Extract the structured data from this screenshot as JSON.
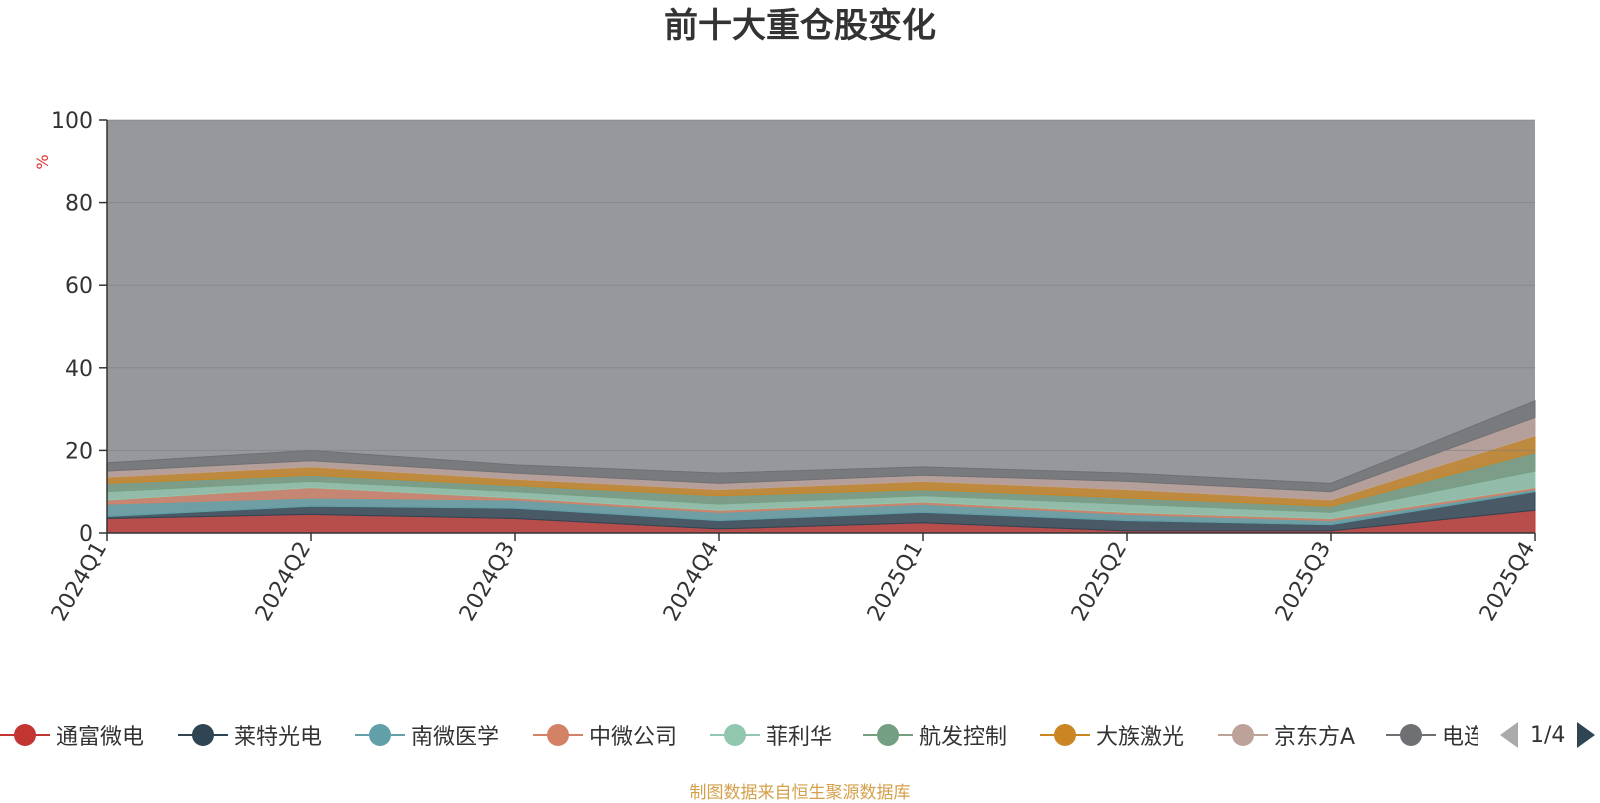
{
  "chart_data": {
    "type": "area",
    "title": "前十大重仓股变化",
    "ylabel": "%",
    "ylim": [
      0,
      100
    ],
    "y_ticks": [
      "0",
      "20",
      "40",
      "60",
      "80",
      "100"
    ],
    "categories": [
      "2024Q1",
      "2024Q2",
      "2024Q3",
      "2024Q4",
      "2025Q1",
      "2025Q2",
      "2025Q3",
      "2025Q4"
    ],
    "stacked": true,
    "grid": true,
    "series": [
      {
        "name": "通富微电",
        "color": "#c23531",
        "values": [
          3.5,
          4.5,
          3.5,
          1.0,
          2.5,
          0.5,
          0.5,
          5.5
        ]
      },
      {
        "name": "莱特光电",
        "color": "#2f4554",
        "values": [
          0.5,
          2.0,
          2.5,
          2.0,
          2.5,
          2.5,
          1.5,
          4.5
        ]
      },
      {
        "name": "南微医学",
        "color": "#61a0a8",
        "values": [
          3.0,
          2.0,
          2.0,
          2.0,
          2.0,
          1.5,
          1.0,
          0.5
        ]
      },
      {
        "name": "中微公司",
        "color": "#d48265",
        "values": [
          1.0,
          2.5,
          0.5,
          0.5,
          0.5,
          0.5,
          0.5,
          0.5
        ]
      },
      {
        "name": "菲利华",
        "color": "#91c7ae",
        "values": [
          2.0,
          1.5,
          1.5,
          1.5,
          1.5,
          2.0,
          1.5,
          4.0
        ]
      },
      {
        "name": "航发控制",
        "color": "#749f83",
        "values": [
          2.0,
          1.5,
          1.5,
          2.0,
          1.5,
          1.5,
          1.5,
          4.5
        ]
      },
      {
        "name": "大族激光",
        "color": "#ca8622",
        "values": [
          1.5,
          2.0,
          1.5,
          1.5,
          2.0,
          2.0,
          1.5,
          4.0
        ]
      },
      {
        "name": "京东方A",
        "color": "#bda29a",
        "values": [
          1.5,
          1.5,
          1.5,
          1.5,
          1.5,
          2.0,
          2.0,
          4.5
        ]
      },
      {
        "name": "电连技术",
        "color": "#6e7074",
        "values": [
          2.0,
          2.5,
          2.0,
          2.5,
          2.0,
          2.0,
          2.0,
          4.0
        ]
      }
    ]
  },
  "legend": {
    "page_indicator": "1/4",
    "items": [
      {
        "label": "通富微电",
        "color": "#c23531"
      },
      {
        "label": "莱特光电",
        "color": "#2f4554"
      },
      {
        "label": "南微医学",
        "color": "#61a0a8"
      },
      {
        "label": "中微公司",
        "color": "#d48265"
      },
      {
        "label": "菲利华",
        "color": "#91c7ae"
      },
      {
        "label": "航发控制",
        "color": "#749f83"
      },
      {
        "label": "大族激光",
        "color": "#ca8622"
      },
      {
        "label": "京东方A",
        "color": "#bda29a"
      },
      {
        "label": "电连技术",
        "color": "#6e7074"
      }
    ]
  },
  "footer": {
    "source_text": "制图数据来自恒生聚源数据库"
  }
}
